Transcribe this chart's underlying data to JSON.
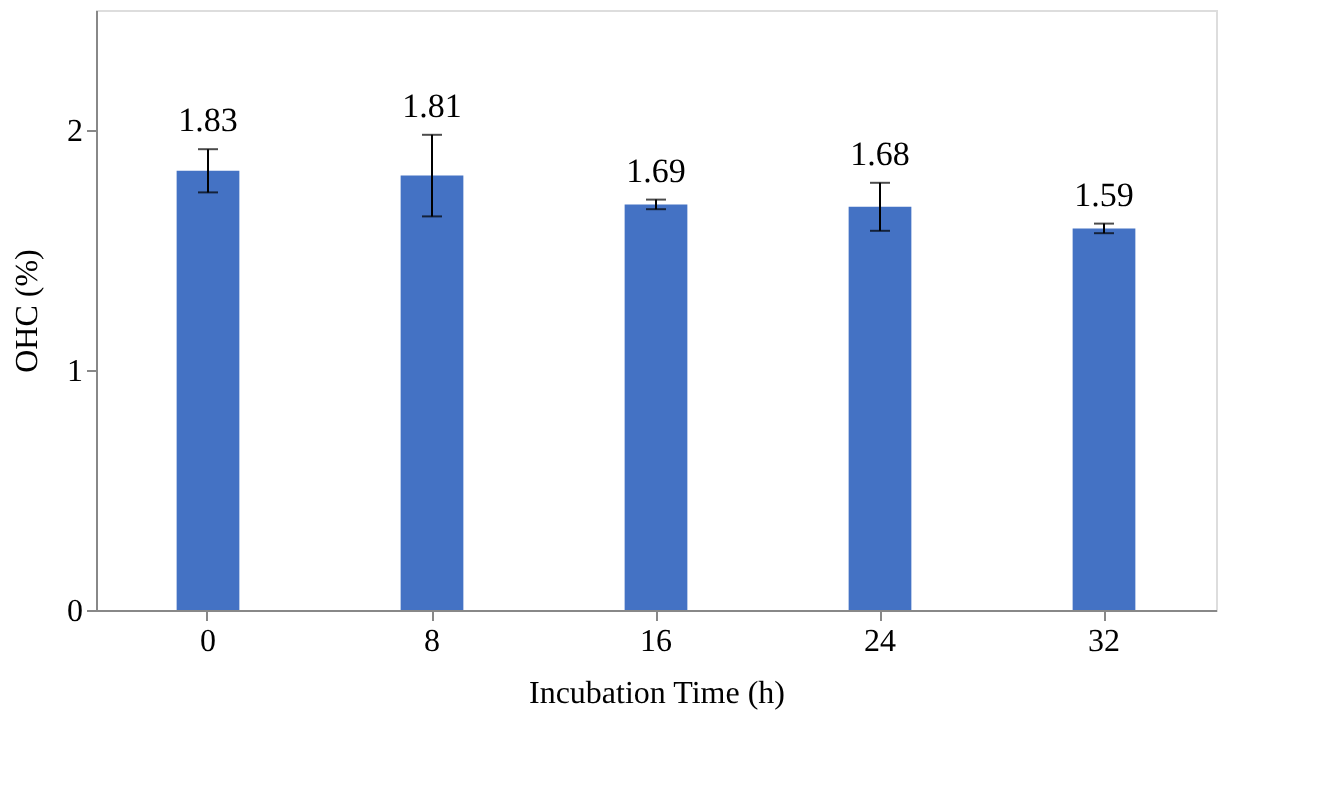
{
  "chart_data": {
    "type": "bar",
    "xlabel": "Incubation Time (h)",
    "ylabel": "OHC (%)",
    "categories": [
      "0",
      "8",
      "16",
      "24",
      "32"
    ],
    "values": [
      1.83,
      1.81,
      1.69,
      1.68,
      1.59
    ],
    "errors": [
      0.09,
      0.17,
      0.02,
      0.1,
      0.02
    ],
    "color": "#4472c4",
    "data_labels": true,
    "ylim": [
      0,
      2.5
    ],
    "yticks": [
      0,
      1,
      2
    ],
    "grid": false
  }
}
